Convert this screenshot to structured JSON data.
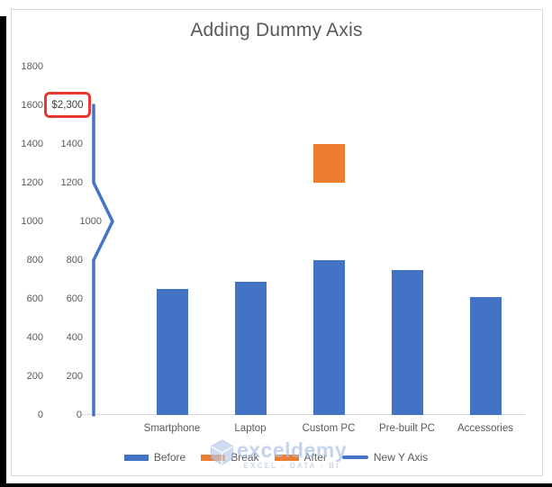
{
  "chart": {
    "title": "Adding Dummy Axis",
    "outer_axis_ticks": [
      "0",
      "200",
      "400",
      "600",
      "800",
      "1000",
      "1200",
      "1400",
      "1600",
      "1800"
    ],
    "dummy_axis_labels": [
      "0",
      "200",
      "400",
      "600",
      "800",
      "1000",
      "1200",
      "1400"
    ],
    "highlight_label": "$2,300",
    "categories": [
      "Smartphone",
      "Laptop",
      "Custom PC",
      "Pre-built PC",
      "Accessories"
    ],
    "legend": [
      {
        "label": "Before",
        "swatch": "bar",
        "color": "#4472C4"
      },
      {
        "label": "Break",
        "swatch": "bar",
        "color": "#ED7D31"
      },
      {
        "label": "After",
        "swatch": "bar",
        "color": "#ED7D31"
      },
      {
        "label": "New Y Axis",
        "swatch": "line",
        "color": "#4472C4"
      }
    ],
    "colors": {
      "bar_blue": "#4472C4",
      "block_orange": "#ED7D31",
      "line_blue": "#4472C4",
      "highlight_red": "#E8392F",
      "text_gray": "#595959",
      "axis_gray": "#D9D9D9"
    }
  },
  "watermark": {
    "name": "exceldemy",
    "tagline": "EXCEL - DATA - BI"
  },
  "chart_data": {
    "type": "bar",
    "title": "Adding Dummy Axis",
    "categories": [
      "Smartphone",
      "Laptop",
      "Custom PC",
      "Pre-built PC",
      "Accessories"
    ],
    "series": [
      {
        "name": "Before",
        "type": "bar",
        "color": "#4472C4",
        "values": [
          650,
          690,
          800,
          750,
          610
        ]
      },
      {
        "name": "Break",
        "type": "bar",
        "color": "#ED7D31",
        "values": [
          0,
          0,
          0,
          0,
          0
        ]
      },
      {
        "name": "After",
        "type": "bar",
        "color": "#ED7D31",
        "block": {
          "category": "Custom PC",
          "from": 1200,
          "to": 1400
        }
      },
      {
        "name": "New Y Axis",
        "type": "line",
        "color": "#4472C4",
        "points": [
          {
            "label": "0",
            "value": 0
          },
          {
            "label": "200",
            "value": 200
          },
          {
            "label": "400",
            "value": 400
          },
          {
            "label": "600",
            "value": 600
          },
          {
            "label": "800",
            "value": 800
          },
          {
            "label": "1000",
            "value": 1000,
            "marker": "axis-break-zigzag"
          },
          {
            "label": "1200",
            "value": 1200
          },
          {
            "label": "1400",
            "value": 1400
          },
          {
            "label": "$2,300",
            "value": 1600,
            "highlight": "red-box"
          }
        ]
      }
    ],
    "ylim": [
      0,
      1800
    ],
    "y_step": 200,
    "grid": false,
    "legend_position": "bottom"
  }
}
